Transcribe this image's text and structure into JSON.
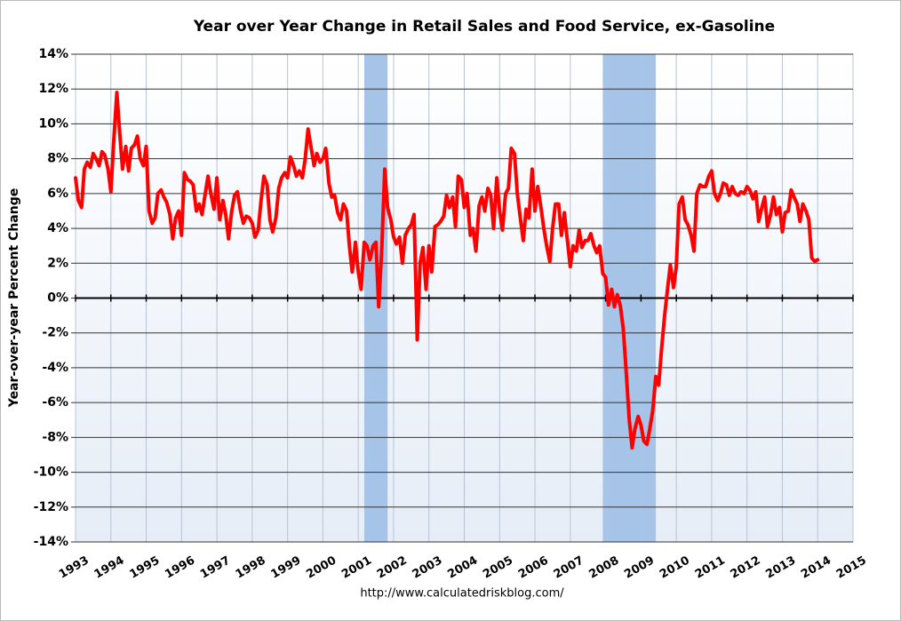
{
  "chart_data": {
    "type": "line",
    "title": "Year over Year Change in Retail Sales and Food Service, ex-Gasoline",
    "ylabel": "Year-over-year Percent Change",
    "source": "http://www.calculatedriskblog.com/",
    "color": "#ff0000",
    "recession_color": "#a6c4e8",
    "recessions": [
      [
        2001.17,
        2001.83
      ],
      [
        2007.92,
        2009.42
      ]
    ],
    "grid": true,
    "xlim": [
      1993,
      2015
    ],
    "xticks": [
      1993,
      1994,
      1995,
      1996,
      1997,
      1998,
      1999,
      2000,
      2001,
      2002,
      2003,
      2004,
      2005,
      2006,
      2007,
      2008,
      2009,
      2010,
      2011,
      2012,
      2013,
      2014,
      2015
    ],
    "ylim": [
      -14,
      14
    ],
    "yticks": [
      {
        "value": -14,
        "label": "-14%"
      },
      {
        "value": -12,
        "label": "-12%"
      },
      {
        "value": -10,
        "label": "-10%"
      },
      {
        "value": -8,
        "label": "-8%"
      },
      {
        "value": -6,
        "label": "-6%"
      },
      {
        "value": -4,
        "label": "-4%"
      },
      {
        "value": -2,
        "label": "-2%"
      },
      {
        "value": 0,
        "label": "0%"
      },
      {
        "value": 2,
        "label": "2%"
      },
      {
        "value": 4,
        "label": "4%"
      },
      {
        "value": 6,
        "label": "6%"
      },
      {
        "value": 8,
        "label": "8%"
      },
      {
        "value": 10,
        "label": "10%"
      },
      {
        "value": 12,
        "label": "12%"
      },
      {
        "value": 14,
        "label": "14%"
      }
    ],
    "x": [
      1993.0,
      1993.08,
      1993.17,
      1993.25,
      1993.33,
      1993.42,
      1993.5,
      1993.58,
      1993.67,
      1993.75,
      1993.83,
      1993.92,
      1994.0,
      1994.08,
      1994.17,
      1994.25,
      1994.33,
      1994.42,
      1994.5,
      1994.58,
      1994.67,
      1994.75,
      1994.83,
      1994.92,
      1995.0,
      1995.08,
      1995.17,
      1995.25,
      1995.33,
      1995.42,
      1995.5,
      1995.58,
      1995.67,
      1995.75,
      1995.83,
      1995.92,
      1996.0,
      1996.08,
      1996.17,
      1996.25,
      1996.33,
      1996.42,
      1996.5,
      1996.58,
      1996.67,
      1996.75,
      1996.83,
      1996.92,
      1997.0,
      1997.08,
      1997.17,
      1997.25,
      1997.33,
      1997.42,
      1997.5,
      1997.58,
      1997.67,
      1997.75,
      1997.83,
      1997.92,
      1998.0,
      1998.08,
      1998.17,
      1998.25,
      1998.33,
      1998.42,
      1998.5,
      1998.58,
      1998.67,
      1998.75,
      1998.83,
      1998.92,
      1999.0,
      1999.08,
      1999.17,
      1999.25,
      1999.33,
      1999.42,
      1999.5,
      1999.58,
      1999.67,
      1999.75,
      1999.83,
      1999.92,
      2000.0,
      2000.08,
      2000.17,
      2000.25,
      2000.33,
      2000.42,
      2000.5,
      2000.58,
      2000.67,
      2000.75,
      2000.83,
      2000.92,
      2001.0,
      2001.08,
      2001.17,
      2001.25,
      2001.33,
      2001.42,
      2001.5,
      2001.58,
      2001.67,
      2001.75,
      2001.83,
      2001.92,
      2002.0,
      2002.08,
      2002.17,
      2002.25,
      2002.33,
      2002.42,
      2002.5,
      2002.58,
      2002.67,
      2002.75,
      2002.83,
      2002.92,
      2003.0,
      2003.08,
      2003.17,
      2003.25,
      2003.33,
      2003.42,
      2003.5,
      2003.58,
      2003.67,
      2003.75,
      2003.83,
      2003.92,
      2004.0,
      2004.08,
      2004.17,
      2004.25,
      2004.33,
      2004.42,
      2004.5,
      2004.58,
      2004.67,
      2004.75,
      2004.83,
      2004.92,
      2005.0,
      2005.08,
      2005.17,
      2005.25,
      2005.33,
      2005.42,
      2005.5,
      2005.58,
      2005.67,
      2005.75,
      2005.83,
      2005.92,
      2006.0,
      2006.08,
      2006.17,
      2006.25,
      2006.33,
      2006.42,
      2006.5,
      2006.58,
      2006.67,
      2006.75,
      2006.83,
      2006.92,
      2007.0,
      2007.08,
      2007.17,
      2007.25,
      2007.33,
      2007.42,
      2007.5,
      2007.58,
      2007.67,
      2007.75,
      2007.83,
      2007.92,
      2008.0,
      2008.08,
      2008.17,
      2008.25,
      2008.33,
      2008.42,
      2008.5,
      2008.58,
      2008.67,
      2008.75,
      2008.83,
      2008.92,
      2009.0,
      2009.08,
      2009.17,
      2009.25,
      2009.33,
      2009.42,
      2009.5,
      2009.58,
      2009.67,
      2009.75,
      2009.83,
      2009.92,
      2010.0,
      2010.08,
      2010.17,
      2010.25,
      2010.33,
      2010.42,
      2010.5,
      2010.58,
      2010.67,
      2010.75,
      2010.83,
      2010.92,
      2011.0,
      2011.08,
      2011.17,
      2011.25,
      2011.33,
      2011.42,
      2011.5,
      2011.58,
      2011.67,
      2011.75,
      2011.83,
      2011.92,
      2012.0,
      2012.08,
      2012.17,
      2012.25,
      2012.33,
      2012.42,
      2012.5,
      2012.58,
      2012.67,
      2012.75,
      2012.83,
      2012.92,
      2013.0,
      2013.08,
      2013.17,
      2013.25,
      2013.33,
      2013.42,
      2013.5,
      2013.58,
      2013.67,
      2013.75,
      2013.83,
      2013.92,
      2014.0
    ],
    "values": [
      6.9,
      5.6,
      5.2,
      7.4,
      7.8,
      7.5,
      8.3,
      8.0,
      7.6,
      8.4,
      8.2,
      7.4,
      6.1,
      9.0,
      11.8,
      9.5,
      7.4,
      8.7,
      7.3,
      8.6,
      8.8,
      9.3,
      8.0,
      7.6,
      8.7,
      5.0,
      4.3,
      4.6,
      6.0,
      6.2,
      5.8,
      5.5,
      4.8,
      3.4,
      4.6,
      5.0,
      3.6,
      7.2,
      6.8,
      6.7,
      6.5,
      5.0,
      5.4,
      4.8,
      6.0,
      7.0,
      6.0,
      5.1,
      6.9,
      4.5,
      5.6,
      4.8,
      3.4,
      5.0,
      5.9,
      6.1,
      5.0,
      4.3,
      4.7,
      4.6,
      4.3,
      3.5,
      3.9,
      5.6,
      7.0,
      6.5,
      4.5,
      3.8,
      4.6,
      6.3,
      6.9,
      7.2,
      6.9,
      8.1,
      7.6,
      7.0,
      7.3,
      6.9,
      8.0,
      9.7,
      8.6,
      7.6,
      8.3,
      7.8,
      8.0,
      8.6,
      6.6,
      5.8,
      5.9,
      4.9,
      4.5,
      5.4,
      5.0,
      3.0,
      1.5,
      3.2,
      1.5,
      0.5,
      3.2,
      3.0,
      2.2,
      3.0,
      3.2,
      -0.5,
      3.0,
      7.4,
      5.2,
      4.5,
      3.5,
      3.1,
      3.5,
      2.0,
      3.6,
      4.0,
      4.2,
      4.8,
      -2.4,
      2.0,
      2.9,
      0.5,
      3.0,
      1.5,
      4.1,
      4.2,
      4.4,
      4.7,
      5.9,
      5.2,
      5.8,
      4.1,
      7.0,
      6.8,
      5.2,
      6.0,
      3.6,
      4.0,
      2.7,
      5.3,
      5.8,
      5.0,
      6.3,
      5.9,
      4.0,
      6.9,
      5.0,
      3.9,
      6.0,
      6.3,
      8.6,
      8.3,
      6.0,
      4.7,
      3.3,
      5.1,
      4.6,
      7.4,
      5.0,
      6.4,
      5.2,
      4.0,
      3.0,
      2.1,
      4.0,
      5.4,
      5.4,
      3.6,
      4.9,
      3.3,
      1.8,
      3.0,
      2.7,
      3.9,
      2.9,
      3.3,
      3.3,
      3.7,
      3.0,
      2.6,
      3.0,
      1.4,
      1.2,
      -0.4,
      0.5,
      -0.5,
      0.2,
      -0.5,
      -1.8,
      -4.2,
      -7.0,
      -8.6,
      -7.5,
      -6.8,
      -7.3,
      -8.2,
      -8.4,
      -7.5,
      -6.5,
      -4.5,
      -5.0,
      -3.0,
      -1.0,
      0.5,
      1.9,
      0.6,
      1.8,
      5.4,
      5.8,
      4.5,
      4.2,
      3.6,
      2.7,
      6.0,
      6.5,
      6.4,
      6.4,
      7.0,
      7.3,
      6.0,
      5.6,
      6.0,
      6.6,
      6.5,
      5.9,
      6.4,
      6.0,
      5.9,
      6.1,
      6.0,
      6.4,
      6.2,
      5.7,
      6.1,
      4.4,
      5.2,
      5.8,
      4.1,
      4.8,
      5.8,
      4.8,
      5.2,
      3.8,
      4.9,
      5.0,
      6.2,
      5.8,
      5.4,
      4.4,
      5.4,
      5.0,
      4.5,
      2.3,
      2.1,
      2.2
    ]
  }
}
